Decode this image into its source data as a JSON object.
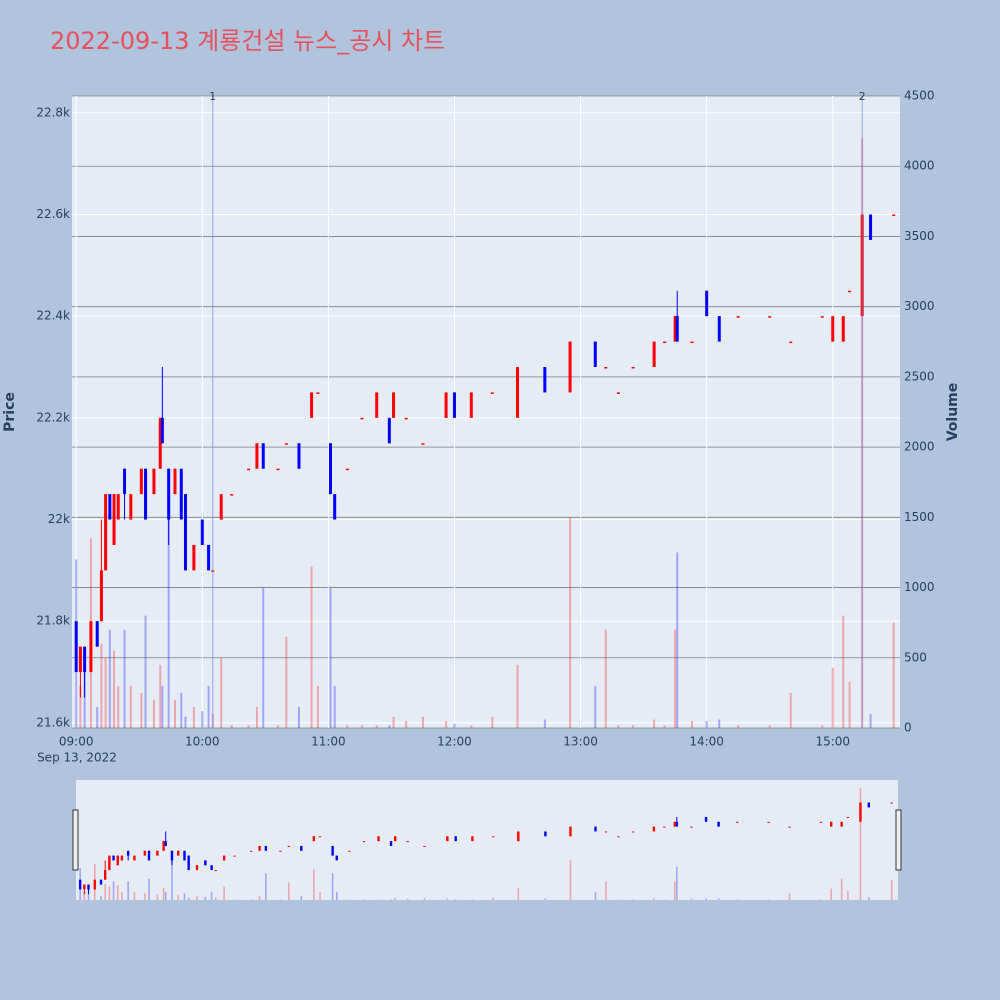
{
  "chart_data": {
    "type": "candlestick",
    "title": "2022-09-13 계룡건설 뉴스_공시 차트",
    "y_label": "Price",
    "y2_label": "Volume",
    "x_date_label": "Sep 13, 2022",
    "increasing_color": "#ff0000",
    "decreasing_color": "#0000ff",
    "xlim": [
      "08:58",
      "15:32"
    ],
    "xticks": [
      "09:00",
      "10:00",
      "11:00",
      "12:00",
      "13:00",
      "14:00",
      "15:00"
    ],
    "ylim": [
      21590,
      22833
    ],
    "yticks": [
      {
        "value": 21600,
        "label": "21.6k"
      },
      {
        "value": 21800,
        "label": "21.8k"
      },
      {
        "value": 22000,
        "label": "22k"
      },
      {
        "value": 22200,
        "label": "22.2k"
      },
      {
        "value": 22400,
        "label": "22.4k"
      },
      {
        "value": 22600,
        "label": "22.6k"
      },
      {
        "value": 22800,
        "label": "22.8k"
      }
    ],
    "y2lim": [
      0,
      4500
    ],
    "y2ticks": [
      0,
      500,
      1000,
      1500,
      2000,
      2500,
      3000,
      3500,
      4000,
      4500
    ],
    "annotations": [
      {
        "x": "10:05",
        "text": "1"
      },
      {
        "x": "15:14",
        "text": "2"
      }
    ],
    "x": [
      "09:00",
      "09:02",
      "09:04",
      "09:07",
      "09:10",
      "09:12",
      "09:14",
      "09:16",
      "09:18",
      "09:20",
      "09:23",
      "09:26",
      "09:31",
      "09:33",
      "09:37",
      "09:40",
      "09:41",
      "09:44",
      "09:47",
      "09:50",
      "09:52",
      "09:56",
      "10:00",
      "10:03",
      "10:05",
      "10:09",
      "10:14",
      "10:22",
      "10:26",
      "10:29",
      "10:36",
      "10:40",
      "10:46",
      "10:52",
      "10:55",
      "11:01",
      "11:03",
      "11:09",
      "11:16",
      "11:23",
      "11:29",
      "11:31",
      "11:37",
      "11:45",
      "11:56",
      "12:00",
      "12:08",
      "12:18",
      "12:30",
      "12:43",
      "12:55",
      "13:07",
      "13:12",
      "13:18",
      "13:25",
      "13:35",
      "13:40",
      "13:45",
      "13:46",
      "13:53",
      "14:00",
      "14:06",
      "14:15",
      "14:30",
      "14:40",
      "14:55",
      "15:00",
      "15:05",
      "15:08",
      "15:14",
      "15:18",
      "15:29"
    ],
    "open": [
      21800,
      21700,
      21750,
      21700,
      21800,
      21800,
      21900,
      22050,
      21950,
      22000,
      22100,
      22000,
      22050,
      22100,
      22050,
      22100,
      22200,
      22100,
      22050,
      22100,
      22050,
      21900,
      22000,
      21950,
      21900,
      22000,
      22050,
      22100,
      22100,
      22150,
      22100,
      22150,
      22150,
      22200,
      22250,
      22150,
      22050,
      22100,
      22200,
      22200,
      22200,
      22200,
      22200,
      22150,
      22200,
      22250,
      22200,
      22250,
      22200,
      22300,
      22250,
      22350,
      22300,
      22250,
      22300,
      22300,
      22350,
      22350,
      22400,
      22350,
      22450,
      22400,
      22400,
      22400,
      22350,
      22400,
      22350,
      22350,
      22450,
      22400,
      22600,
      22600
    ],
    "high": [
      21800,
      21750,
      21750,
      21800,
      21800,
      22000,
      22050,
      22050,
      22050,
      22050,
      22100,
      22050,
      22100,
      22100,
      22100,
      22200,
      22300,
      22100,
      22100,
      22100,
      22050,
      21950,
      22000,
      21950,
      21900,
      22050,
      22050,
      22100,
      22150,
      22150,
      22100,
      22150,
      22150,
      22250,
      22250,
      22150,
      22050,
      22100,
      22200,
      22250,
      22200,
      22250,
      22200,
      22150,
      22250,
      22250,
      22250,
      22250,
      22300,
      22300,
      22350,
      22350,
      22300,
      22250,
      22300,
      22350,
      22350,
      22400,
      22450,
      22350,
      22450,
      22400,
      22400,
      22400,
      22350,
      22400,
      22400,
      22400,
      22450,
      22600,
      22600,
      22600
    ],
    "low": [
      21700,
      21650,
      21650,
      21700,
      21750,
      21800,
      21900,
      22000,
      21950,
      22000,
      22000,
      22000,
      22050,
      22000,
      22050,
      22100,
      22150,
      21950,
      22050,
      22000,
      21900,
      21900,
      21950,
      21900,
      21900,
      22000,
      22050,
      22100,
      22100,
      22100,
      22100,
      22150,
      22100,
      22200,
      22250,
      22050,
      22000,
      22100,
      22200,
      22200,
      22150,
      22200,
      22200,
      22150,
      22200,
      22200,
      22200,
      22250,
      22200,
      22250,
      22250,
      22300,
      22300,
      22250,
      22300,
      22300,
      22350,
      22350,
      22350,
      22350,
      22400,
      22350,
      22400,
      22400,
      22350,
      22400,
      22350,
      22350,
      22450,
      22400,
      22550,
      22600
    ],
    "close": [
      21700,
      21750,
      21700,
      21800,
      21750,
      21900,
      22050,
      22000,
      22050,
      22050,
      22050,
      22050,
      22100,
      22000,
      22100,
      22200,
      22150,
      22000,
      22100,
      22000,
      21900,
      21950,
      21950,
      21900,
      21900,
      22050,
      22050,
      22100,
      22150,
      22100,
      22100,
      22150,
      22100,
      22250,
      22250,
      22050,
      22000,
      22100,
      22200,
      22250,
      22150,
      22250,
      22200,
      22150,
      22250,
      22200,
      22250,
      22250,
      22300,
      22250,
      22350,
      22300,
      22300,
      22250,
      22300,
      22350,
      22350,
      22400,
      22350,
      22350,
      22400,
      22350,
      22400,
      22400,
      22350,
      22400,
      22400,
      22400,
      22450,
      22600,
      22550,
      22600
    ],
    "volume": [
      1200,
      300,
      400,
      1350,
      150,
      600,
      500,
      700,
      550,
      300,
      700,
      300,
      250,
      800,
      200,
      450,
      300,
      1500,
      200,
      250,
      80,
      150,
      120,
      300,
      100,
      500,
      20,
      20,
      150,
      1000,
      20,
      650,
      150,
      1150,
      300,
      1000,
      300,
      20,
      20,
      20,
      20,
      80,
      50,
      80,
      50,
      30,
      20,
      80,
      450,
      60,
      1500,
      300,
      700,
      20,
      20,
      60,
      20,
      700,
      1250,
      50,
      50,
      60,
      20,
      20,
      250,
      20,
      430,
      800,
      330,
      4200,
      100,
      750
    ]
  }
}
